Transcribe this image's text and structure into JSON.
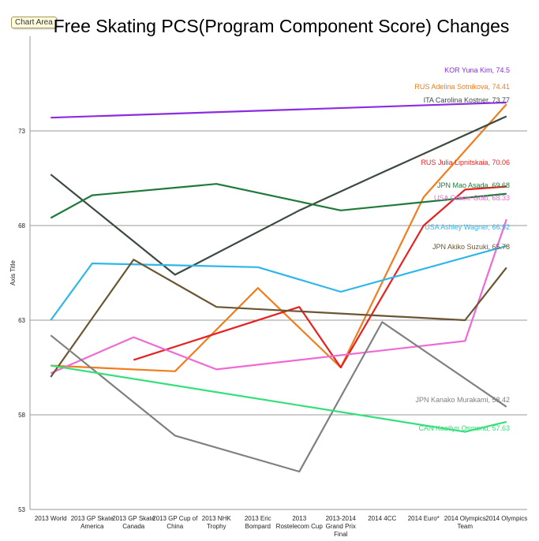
{
  "badge": "Chart Area",
  "chart_data": {
    "type": "line",
    "title": "Free Skating PCS(Program Component Score) Changes",
    "ylabel": "Axis Title",
    "xlabel": "",
    "ylim": [
      53,
      78
    ],
    "yticks": [
      53,
      58,
      63,
      68,
      73
    ],
    "grid": true,
    "legend": "labels at line ends",
    "categories": [
      "2013 World",
      "2013 GP Skate America",
      "2013 GP Skate Canada",
      "2013 GP Cup of China",
      "2013 NHK Trophy",
      "2013 Eric Bompard",
      "2013 Rostelecom Cup",
      "2013-2014 Grand Prix Final",
      "2014 4CC",
      "2014 Euro*",
      "2014 Olympics Team",
      "2014 Olympics"
    ],
    "series": [
      {
        "name": "KOR Yuna Kim",
        "label": "KOR Yuna Kim, 74.5",
        "color": "#8b2be2",
        "values": [
          73.7,
          null,
          null,
          null,
          null,
          null,
          null,
          null,
          null,
          null,
          null,
          74.5
        ]
      },
      {
        "name": "RUS Adelina Sotnikova",
        "label": "RUS Adelina Sotnikova, 74.41",
        "color": "#f07d1e",
        "values": [
          60.6,
          null,
          null,
          60.3,
          null,
          64.7,
          null,
          60.5,
          null,
          69.5,
          null,
          74.41
        ]
      },
      {
        "name": "ITA Carolina Kostner",
        "label": "ITA Carolina Kostner, 73.77",
        "color": "#3c4a40",
        "values": [
          70.7,
          null,
          null,
          65.4,
          null,
          null,
          68.8,
          null,
          70.8,
          null,
          null,
          73.77
        ]
      },
      {
        "name": "RUS Julia Lipnitskaia",
        "label": "RUS Julia Lipnitskaia, 70.06",
        "color": "#e82020",
        "values": [
          null,
          null,
          60.9,
          null,
          null,
          null,
          63.7,
          60.5,
          null,
          68,
          69.9,
          70.06
        ]
      },
      {
        "name": "JPN Mao Asada",
        "label": "JPN Mao Asada, 69.68",
        "color": "#1f7a3a",
        "values": [
          68.4,
          69.6,
          null,
          null,
          70.2,
          null,
          null,
          68.8,
          null,
          null,
          null,
          69.68
        ]
      },
      {
        "name": "USA Gracie Gold",
        "label": "USA Gracie Gold, 68.33",
        "color": "#ee6ad4",
        "values": [
          60.2,
          null,
          62.1,
          null,
          60.4,
          null,
          null,
          null,
          null,
          null,
          61.9,
          68.33
        ]
      },
      {
        "name": "USA Ashley Wagner",
        "label": "USA Ashley Wagner, 66.92",
        "color": "#2fb6ea",
        "values": [
          63,
          66,
          null,
          null,
          null,
          65.8,
          null,
          64.5,
          null,
          null,
          null,
          66.92
        ]
      },
      {
        "name": "JPN Akiko Suzuki",
        "label": "JPN Akiko Suzuki, 65.78",
        "color": "#6b5633",
        "values": [
          60,
          null,
          66.2,
          null,
          63.7,
          null,
          null,
          null,
          null,
          null,
          63,
          65.78
        ]
      },
      {
        "name": "JPN Kanako Murakami",
        "label": "JPN Kanako Murakami, 58.42",
        "color": "#808080",
        "values": [
          62.2,
          null,
          null,
          56.9,
          null,
          null,
          55,
          null,
          62.9,
          null,
          null,
          58.42
        ]
      },
      {
        "name": "CAN Kaetlyn Osmond",
        "label": "CAN Kaetlyn Osmond, 57.63",
        "color": "#35e07a",
        "values": [
          60.6,
          null,
          null,
          null,
          null,
          null,
          null,
          null,
          null,
          null,
          57.1,
          57.63
        ]
      }
    ]
  }
}
